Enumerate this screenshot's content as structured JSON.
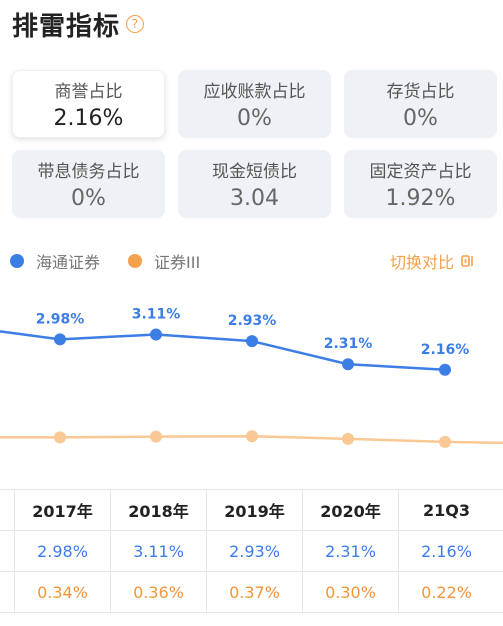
{
  "header": {
    "title": "排雷指标",
    "help_glyph": "?"
  },
  "cards": [
    {
      "label": "商誉占比",
      "value": "2.16%",
      "active": true
    },
    {
      "label": "应收账款占比",
      "value": "0%"
    },
    {
      "label": "存货占比",
      "value": "0%"
    },
    {
      "label": "带息债务占比",
      "value": "0%"
    },
    {
      "label": "现金短债比",
      "value": "3.04"
    },
    {
      "label": "固定资产占比",
      "value": "1.92%"
    }
  ],
  "legend": [
    {
      "name": "海通证券",
      "color": "#3c7de6"
    },
    {
      "name": "证券III",
      "color": "#f5a04a"
    }
  ],
  "switch_label": "切换对比",
  "chart_data": {
    "type": "line",
    "categories": [
      "2017年",
      "2018年",
      "2019年",
      "2020年",
      "21Q3"
    ],
    "series": [
      {
        "name": "海通证券",
        "values": [
          2.98,
          3.11,
          2.93,
          2.31,
          2.16
        ],
        "labels": [
          "2.98%",
          "3.11%",
          "2.93%",
          "2.31%",
          "2.16%"
        ],
        "color": "#3c7de6"
      },
      {
        "name": "证券III",
        "values": [
          0.34,
          0.36,
          0.37,
          0.3,
          0.22
        ],
        "labels": [
          "0.34%",
          "0.36%",
          "0.37%",
          "0.30%",
          "0.22%"
        ],
        "color": "#f9c894"
      }
    ]
  },
  "table": {
    "headers": [
      "2017年",
      "2018年",
      "2019年",
      "2020年",
      "21Q3"
    ],
    "rows": [
      [
        "2.98%",
        "3.11%",
        "2.93%",
        "2.31%",
        "2.16%"
      ],
      [
        "0.34%",
        "0.36%",
        "0.37%",
        "0.30%",
        "0.22%"
      ]
    ]
  }
}
